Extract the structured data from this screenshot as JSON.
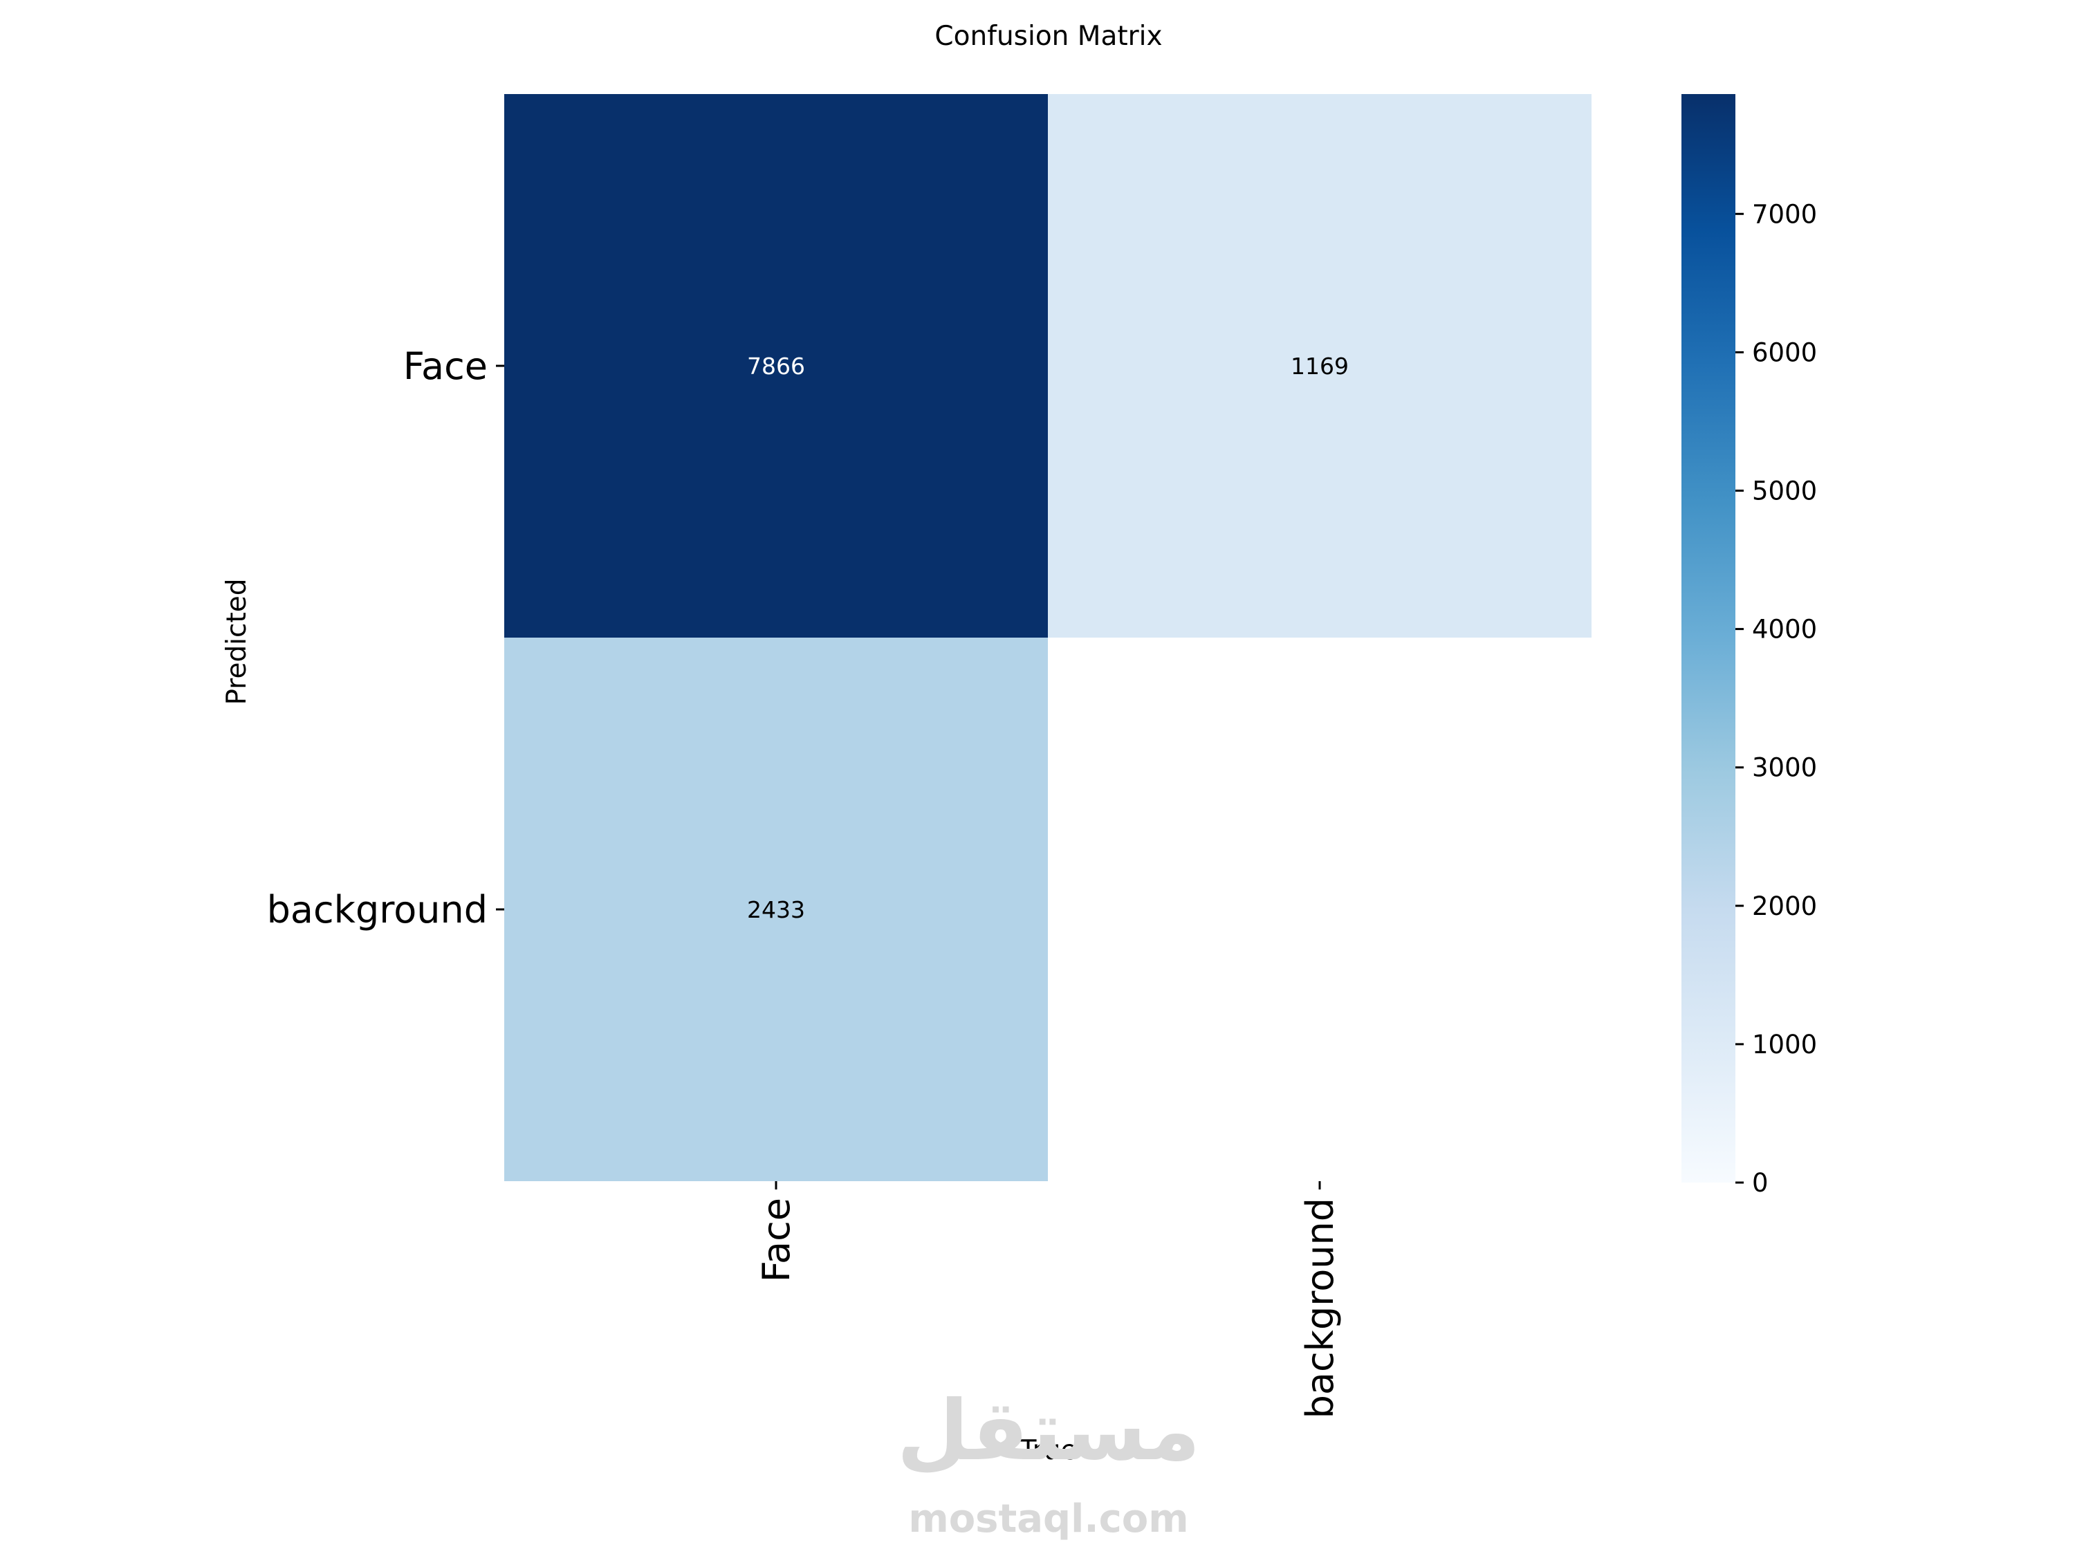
{
  "chart_data": {
    "type": "heatmap",
    "title": "Confusion Matrix",
    "xlabel": "True",
    "ylabel": "Predicted",
    "x_categories": [
      "Face",
      "background"
    ],
    "y_categories": [
      "Face",
      "background"
    ],
    "matrix": [
      [
        7866,
        1169
      ],
      [
        2433,
        null
      ]
    ],
    "colormap": "Blues",
    "color_range": [
      0,
      7866
    ],
    "colorbar_ticks": [
      0,
      1000,
      2000,
      3000,
      4000,
      5000,
      6000,
      7000
    ],
    "colors": {
      "blues_stops": [
        "#f7fbff",
        "#deebf7",
        "#c6dbef",
        "#9ecae1",
        "#6baed6",
        "#4292c6",
        "#2171b5",
        "#08519c",
        "#08306b"
      ],
      "empty_cell": "#ffffff",
      "annotation_dark": "#000000",
      "annotation_light": "#ffffff"
    }
  },
  "watermark": {
    "logo_text": "مستقل",
    "url_text": "mostaql.com"
  }
}
